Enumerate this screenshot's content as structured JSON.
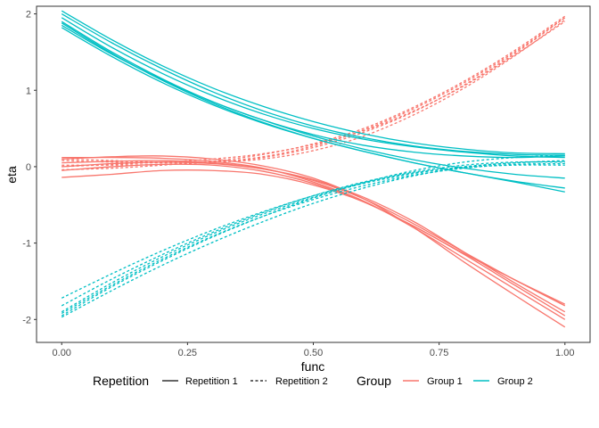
{
  "chart_data": {
    "type": "line",
    "xlabel": "func",
    "ylabel": "eta",
    "xlim": [
      -0.05,
      1.05
    ],
    "ylim": [
      -2.3,
      2.1
    ],
    "x_ticks": [
      0.0,
      0.25,
      0.5,
      0.75,
      1.0
    ],
    "x_tick_labels": [
      "0.00",
      "0.25",
      "0.50",
      "0.75",
      "1.00"
    ],
    "y_ticks": [
      -2,
      -1,
      0,
      1,
      2
    ],
    "y_tick_labels": [
      "-2",
      "-1",
      "0",
      "1",
      "2"
    ],
    "grid": false,
    "legend_position": "bottom",
    "x": [
      0.0,
      0.1,
      0.2,
      0.3,
      0.4,
      0.5,
      0.6,
      0.7,
      0.8,
      0.9,
      1.0
    ],
    "legend": {
      "repetition": {
        "title": "Repetition",
        "items": [
          {
            "label": "Repetition 1",
            "linetype": "solid"
          },
          {
            "label": "Repetition 2",
            "linetype": "dashed"
          }
        ]
      },
      "group": {
        "title": "Group",
        "items": [
          {
            "label": "Group 1",
            "color": "#F8766D"
          },
          {
            "label": "Group 2",
            "color": "#00BFC4"
          }
        ]
      }
    },
    "series": [
      {
        "group": "Group 1",
        "repetition": "Repetition 1",
        "color": "#F8766D",
        "linetype": "solid",
        "y": [
          0.12,
          0.12,
          0.11,
          0.07,
          -0.02,
          -0.2,
          -0.45,
          -0.8,
          -1.2,
          -1.6,
          -2.0
        ]
      },
      {
        "group": "Group 1",
        "repetition": "Repetition 1",
        "color": "#F8766D",
        "linetype": "solid",
        "y": [
          0.1,
          0.13,
          0.14,
          0.1,
          0.01,
          -0.15,
          -0.42,
          -0.8,
          -1.25,
          -1.68,
          -2.1
        ]
      },
      {
        "group": "Group 1",
        "repetition": "Repetition 1",
        "color": "#F8766D",
        "linetype": "solid",
        "y": [
          0.05,
          0.07,
          0.08,
          0.05,
          -0.03,
          -0.17,
          -0.4,
          -0.72,
          -1.12,
          -1.52,
          -1.9
        ]
      },
      {
        "group": "Group 1",
        "repetition": "Repetition 1",
        "color": "#F8766D",
        "linetype": "solid",
        "y": [
          0.0,
          0.04,
          0.06,
          0.04,
          -0.03,
          -0.18,
          -0.42,
          -0.75,
          -1.12,
          -1.48,
          -1.82
        ]
      },
      {
        "group": "Group 1",
        "repetition": "Repetition 1",
        "color": "#F8766D",
        "linetype": "solid",
        "y": [
          -0.05,
          0.0,
          0.03,
          0.02,
          -0.06,
          -0.22,
          -0.46,
          -0.78,
          -1.14,
          -1.48,
          -1.8
        ]
      },
      {
        "group": "Group 1",
        "repetition": "Repetition 1",
        "color": "#F8766D",
        "linetype": "solid",
        "y": [
          -0.14,
          -0.1,
          -0.05,
          -0.05,
          -0.1,
          -0.24,
          -0.46,
          -0.78,
          -1.15,
          -1.55,
          -1.95
        ]
      },
      {
        "group": "Group 1",
        "repetition": "Repetition 2",
        "color": "#F8766D",
        "linetype": "dashed",
        "y": [
          0.08,
          0.06,
          0.05,
          0.06,
          0.12,
          0.25,
          0.45,
          0.72,
          1.07,
          1.48,
          1.95
        ]
      },
      {
        "group": "Group 1",
        "repetition": "Repetition 2",
        "color": "#F8766D",
        "linetype": "dashed",
        "y": [
          0.02,
          0.02,
          0.03,
          0.06,
          0.13,
          0.27,
          0.48,
          0.76,
          1.1,
          1.5,
          1.95
        ]
      },
      {
        "group": "Group 1",
        "repetition": "Repetition 2",
        "color": "#F8766D",
        "linetype": "dashed",
        "y": [
          -0.04,
          -0.02,
          0.02,
          0.07,
          0.16,
          0.3,
          0.5,
          0.78,
          1.12,
          1.52,
          1.97
        ]
      },
      {
        "group": "Group 1",
        "repetition": "Repetition 2",
        "color": "#F8766D",
        "linetype": "dashed",
        "y": [
          0.1,
          0.08,
          0.06,
          0.06,
          0.1,
          0.21,
          0.4,
          0.68,
          1.03,
          1.45,
          1.92
        ]
      },
      {
        "group": "Group 1",
        "repetition": "Repetition 2",
        "color": "#F8766D",
        "linetype": "dashed",
        "y": [
          0.0,
          0.03,
          0.06,
          0.1,
          0.17,
          0.29,
          0.47,
          0.73,
          1.06,
          1.46,
          1.9
        ]
      },
      {
        "group": "Group 2",
        "repetition": "Repetition 1",
        "color": "#00BFC4",
        "linetype": "solid",
        "y": [
          2.04,
          1.66,
          1.32,
          1.03,
          0.79,
          0.59,
          0.43,
          0.31,
          0.23,
          0.18,
          0.17
        ]
      },
      {
        "group": "Group 2",
        "repetition": "Repetition 1",
        "color": "#00BFC4",
        "linetype": "solid",
        "y": [
          2.0,
          1.62,
          1.28,
          0.98,
          0.73,
          0.53,
          0.38,
          0.27,
          0.2,
          0.16,
          0.15
        ]
      },
      {
        "group": "Group 2",
        "repetition": "Repetition 1",
        "color": "#00BFC4",
        "linetype": "solid",
        "y": [
          1.95,
          1.56,
          1.22,
          0.93,
          0.69,
          0.5,
          0.36,
          0.26,
          0.19,
          0.14,
          0.12
        ]
      },
      {
        "group": "Group 2",
        "repetition": "Repetition 1",
        "color": "#00BFC4",
        "linetype": "solid",
        "y": [
          1.9,
          1.5,
          1.15,
          0.85,
          0.61,
          0.42,
          0.28,
          0.19,
          0.14,
          0.12,
          0.14
        ]
      },
      {
        "group": "Group 2",
        "repetition": "Repetition 1",
        "color": "#00BFC4",
        "linetype": "solid",
        "y": [
          1.85,
          1.47,
          1.14,
          0.85,
          0.61,
          0.4,
          0.23,
          0.09,
          -0.02,
          -0.1,
          -0.15
        ]
      },
      {
        "group": "Group 2",
        "repetition": "Repetition 1",
        "color": "#00BFC4",
        "linetype": "solid",
        "y": [
          1.82,
          1.44,
          1.1,
          0.81,
          0.57,
          0.37,
          0.2,
          0.05,
          -0.08,
          -0.19,
          -0.28
        ]
      },
      {
        "group": "Group 2",
        "repetition": "Repetition 1",
        "color": "#00BFC4",
        "linetype": "solid",
        "y": [
          1.88,
          1.48,
          1.13,
          0.83,
          0.58,
          0.37,
          0.2,
          0.05,
          -0.08,
          -0.2,
          -0.33
        ]
      },
      {
        "group": "Group 2",
        "repetition": "Repetition 2",
        "color": "#00BFC4",
        "linetype": "dashed",
        "y": [
          -1.97,
          -1.62,
          -1.29,
          -0.99,
          -0.72,
          -0.48,
          -0.28,
          -0.12,
          -0.01,
          0.05,
          0.08
        ]
      },
      {
        "group": "Group 2",
        "repetition": "Repetition 2",
        "color": "#00BFC4",
        "linetype": "dashed",
        "y": [
          -1.95,
          -1.57,
          -1.23,
          -0.92,
          -0.65,
          -0.41,
          -0.21,
          -0.05,
          0.06,
          0.12,
          0.15
        ]
      },
      {
        "group": "Group 2",
        "repetition": "Repetition 2",
        "color": "#00BFC4",
        "linetype": "dashed",
        "y": [
          -1.9,
          -1.52,
          -1.18,
          -0.88,
          -0.62,
          -0.4,
          -0.22,
          -0.09,
          0.0,
          0.05,
          0.07
        ]
      },
      {
        "group": "Group 2",
        "repetition": "Repetition 2",
        "color": "#00BFC4",
        "linetype": "dashed",
        "y": [
          -1.82,
          -1.47,
          -1.15,
          -0.86,
          -0.6,
          -0.38,
          -0.2,
          -0.07,
          0.02,
          0.06,
          0.06
        ]
      },
      {
        "group": "Group 2",
        "repetition": "Repetition 2",
        "color": "#00BFC4",
        "linetype": "dashed",
        "y": [
          -1.72,
          -1.4,
          -1.1,
          -0.83,
          -0.59,
          -0.38,
          -0.21,
          -0.08,
          -0.01,
          0.02,
          0.02
        ]
      },
      {
        "group": "Group 2",
        "repetition": "Repetition 2",
        "color": "#00BFC4",
        "linetype": "dashed",
        "y": [
          -1.92,
          -1.55,
          -1.21,
          -0.91,
          -0.65,
          -0.43,
          -0.25,
          -0.11,
          -0.02,
          0.03,
          0.04
        ]
      }
    ]
  }
}
